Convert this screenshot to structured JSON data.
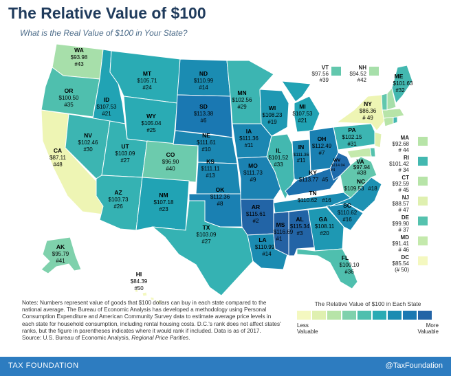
{
  "title": "The Relative Value of $100",
  "subtitle": "What is the Real Value of $100 in Your State?",
  "states": [
    {
      "abbr": "WA",
      "value": "$93.98",
      "rank": "#43",
      "color": "#a7dfaa"
    },
    {
      "abbr": "OR",
      "value": "$100.50",
      "rank": "#35",
      "color": "#4fbfae"
    },
    {
      "abbr": "CA",
      "value": "$87.11",
      "rank": "#48",
      "color": "#eef5b4"
    },
    {
      "abbr": "ID",
      "value": "$107.53",
      "rank": "#21",
      "color": "#21a3b4"
    },
    {
      "abbr": "NV",
      "value": "$102.46",
      "rank": "#30",
      "color": "#3cb5b2"
    },
    {
      "abbr": "UT",
      "value": "$103.09",
      "rank": "#27",
      "color": "#35b2b3"
    },
    {
      "abbr": "AZ",
      "value": "$103.73",
      "rank": "#26",
      "color": "#35b2b3"
    },
    {
      "abbr": "MT",
      "value": "$105.71",
      "rank": "#24",
      "color": "#2aabb4"
    },
    {
      "abbr": "WY",
      "value": "$105.04",
      "rank": "#25",
      "color": "#2aabb4"
    },
    {
      "abbr": "CO",
      "value": "$96.90",
      "rank": "#40",
      "color": "#6ccbad"
    },
    {
      "abbr": "NM",
      "value": "$107.18",
      "rank": "#23",
      "color": "#21a3b4"
    },
    {
      "abbr": "ND",
      "value": "$110.99",
      "rank": "#14",
      "color": "#1b8cb2"
    },
    {
      "abbr": "SD",
      "value": "$113.38",
      "rank": "#6",
      "color": "#1a78b2"
    },
    {
      "abbr": "NE",
      "value": "$111.61",
      "rank": "#10",
      "color": "#1b87b2"
    },
    {
      "abbr": "KS",
      "value": "$111.11",
      "rank": "#13",
      "color": "#1b87b2"
    },
    {
      "abbr": "OK",
      "value": "$112.36",
      "rank": "#8",
      "color": "#1a80b2"
    },
    {
      "abbr": "TX",
      "value": "$103.09",
      "rank": "#27",
      "color": "#35b2b3"
    },
    {
      "abbr": "MN",
      "value": "$102.56",
      "rank": "#29",
      "color": "#3cb5b2"
    },
    {
      "abbr": "IA",
      "value": "$111.36",
      "rank": "#11",
      "color": "#1b87b2"
    },
    {
      "abbr": "MO",
      "value": "$111.73",
      "rank": "#9",
      "color": "#1b82b2"
    },
    {
      "abbr": "AR",
      "value": "$115.61",
      "rank": "#2",
      "color": "#2264a6"
    },
    {
      "abbr": "LA",
      "value": "$110.99",
      "rank": "#14",
      "color": "#1b8cb2"
    },
    {
      "abbr": "WI",
      "value": "$108.23",
      "rank": "#19",
      "color": "#1e98b3"
    },
    {
      "abbr": "IL",
      "value": "$101.52",
      "rank": "#33",
      "color": "#43b8b0"
    },
    {
      "abbr": "MI",
      "value": "$107.53",
      "rank": "#21",
      "color": "#21a3b4"
    },
    {
      "abbr": "IN",
      "value": "$111.36",
      "rank": "#11",
      "color": "#1b87b2"
    },
    {
      "abbr": "OH",
      "value": "$112.49",
      "rank": "#7",
      "color": "#1a80b2"
    },
    {
      "abbr": "KY",
      "value": "$113.77",
      "rank": "#5",
      "color": "#1d71ae"
    },
    {
      "abbr": "TN",
      "value": "$110.62",
      "rank": "#16",
      "color": "#1b8cb2"
    },
    {
      "abbr": "MS",
      "value": "$116.69",
      "rank": "#1",
      "color": "#2461a3"
    },
    {
      "abbr": "AL",
      "value": "$115.34",
      "rank": "#3",
      "color": "#2264a6"
    },
    {
      "abbr": "GA",
      "value": "$108.11",
      "rank": "#20",
      "color": "#1e98b3"
    },
    {
      "abbr": "FL",
      "value": "$100.10",
      "rank": "#36",
      "color": "#4fbfae"
    },
    {
      "abbr": "SC",
      "value": "$110.62",
      "rank": "#16",
      "color": "#1b8cb2"
    },
    {
      "abbr": "NC",
      "value": "$109.53",
      "rank": "#18",
      "color": "#1d92b3"
    },
    {
      "abbr": "VA",
      "value": "$97.94",
      "rank": "#38",
      "color": "#62c7ad"
    },
    {
      "abbr": "WV",
      "value": "$114.04",
      "rank": "#4",
      "color": "#1f6aab"
    },
    {
      "abbr": "PA",
      "value": "$102.15",
      "rank": "#31",
      "color": "#3cb5b2"
    },
    {
      "abbr": "NY",
      "value": "$86.36",
      "rank": "# 49",
      "color": "#eef5b4"
    },
    {
      "abbr": "ME",
      "value": "$101.63",
      "rank": "#32",
      "color": "#43b8b0"
    },
    {
      "abbr": "AK",
      "value": "$95.79",
      "rank": "#41",
      "color": "#7fd1ac"
    },
    {
      "abbr": "HI",
      "value": "$84.39",
      "rank": "#50",
      "color": "#f4f8c0"
    }
  ],
  "top_boxes": [
    {
      "abbr": "VT",
      "value": "$97.56",
      "rank": "#39",
      "color": "#62c7ad"
    },
    {
      "abbr": "NH",
      "value": "$94.52",
      "rank": "#42",
      "color": "#a7dfaa"
    }
  ],
  "side_boxes": [
    {
      "abbr": "MA",
      "value": "$92.68",
      "rank": "# 44",
      "color": "#b7e4a8"
    },
    {
      "abbr": "RI",
      "value": "$101.42",
      "rank": "# 34",
      "color": "#43b8b0"
    },
    {
      "abbr": "CT",
      "value": "$92.59",
      "rank": "# 45",
      "color": "#b7e4a8"
    },
    {
      "abbr": "NJ",
      "value": "$88.57",
      "rank": "# 47",
      "color": "#dff0b0"
    },
    {
      "abbr": "DE",
      "value": "$99.90",
      "rank": "# 37",
      "color": "#55c2ae"
    },
    {
      "abbr": "MD",
      "value": "$91.41",
      "rank": "# 46",
      "color": "#c4e9ac"
    },
    {
      "abbr": "DC",
      "value": "$85.54",
      "rank": "(# 50)",
      "color": "#f4f8c0"
    }
  ],
  "notes": "Notes: Numbers represent value of goods that $100 dollars can buy in each state compared to the national average. The Bureau of Economic Analysis has developed a methodology using Personal Consumption Expenditure and American Community Survey data to estimate average price levels in each state for household consumption, including rental housing costs. D.C.'s rank does not affect states' ranks, but the figure in parentheses indicates where it would rank if included. Data is as of 2017.",
  "source_prefix": "Source: U.S. Bureau of Economic Analysis, ",
  "source_title": "Regional Price Parities",
  "source_suffix": ".",
  "legend": {
    "title": "The Relative Value of $100 in Each State",
    "low_line1": "Less",
    "low_line2": "Valuable",
    "high_line1": "More",
    "high_line2": "Valuable",
    "colors": [
      "#f4f8c0",
      "#dff0b0",
      "#b7e4a8",
      "#7fd1ac",
      "#4fbfae",
      "#2aabb4",
      "#1b8cb2",
      "#1a78b2",
      "#2264a6"
    ]
  },
  "footer": {
    "left": "TAX FOUNDATION",
    "right": "@TaxFoundation"
  }
}
